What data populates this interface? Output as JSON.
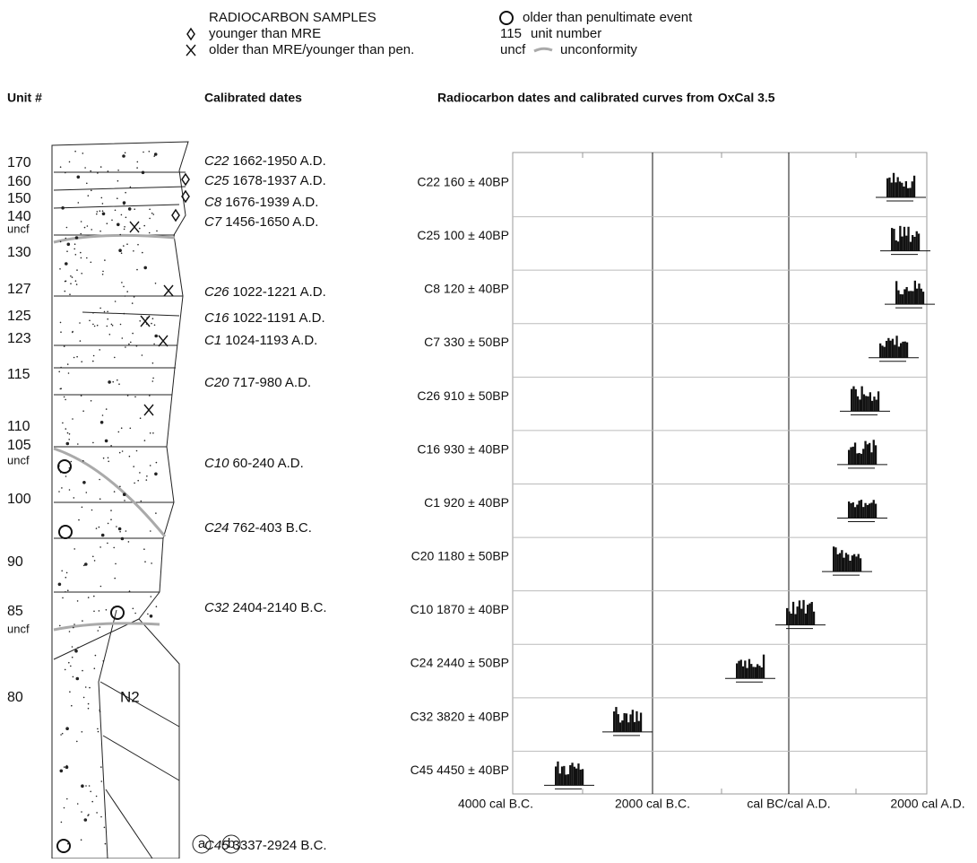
{
  "legend": {
    "title": "RADIOCARBON SAMPLES",
    "items": [
      {
        "text": "younger than MRE"
      },
      {
        "text": "older than MRE/younger than pen."
      },
      {
        "text": "older than penultimate event"
      },
      {
        "key": "115",
        "text": "unit number"
      },
      {
        "key": "uncf",
        "text": "unconformity"
      }
    ]
  },
  "headers": {
    "unit": "Unit #",
    "dates": "Calibrated dates",
    "oxcal": "Radiocarbon dates and calibrated curves from OxCal 3.5"
  },
  "units": [
    "170",
    "160",
    "150",
    "140",
    "uncf",
    "130",
    "127",
    "125",
    "123",
    "115",
    "110",
    "105",
    "uncf",
    "100",
    "90",
    "85",
    "uncf",
    "80"
  ],
  "column_label": "N2",
  "dates": [
    {
      "sample": "C22",
      "range": "1662-1950 A.D."
    },
    {
      "sample": "C25",
      "range": "1678-1937 A.D."
    },
    {
      "sample": "C8",
      "range": "1676-1939 A.D."
    },
    {
      "sample": "C7",
      "range": "1456-1650 A.D."
    },
    {
      "sample": "C26",
      "range": "1022-1221 A.D."
    },
    {
      "sample": "C16",
      "range": "1022-1191 A.D."
    },
    {
      "sample": "C1",
      "range": "1024-1193 A.D."
    },
    {
      "sample": "C20",
      "range": "717-980 A.D."
    },
    {
      "sample": "C10",
      "range": "60-240 A.D."
    },
    {
      "sample": "C24",
      "range": "762-403 B.C."
    },
    {
      "sample": "C32",
      "range": "2404-2140 B.C."
    },
    {
      "sample": "C45",
      "range": "3337-2924 B.C."
    }
  ],
  "oxcal_rows": [
    "C22 160 ± 40BP",
    "C25 100 ± 40BP",
    "C8 120 ± 40BP",
    "C7 330 ± 50BP",
    "C26 910 ± 50BP",
    "C16 930 ± 40BP",
    "C1 920 ± 40BP",
    "C20 1180 ± 50BP",
    "C10 1870 ± 40BP",
    "C24 2440 ± 50BP",
    "C32 3820 ± 40BP",
    "C45 4450 ± 40BP"
  ],
  "x_axis": [
    "4000 cal B.C.",
    "2000 cal B.C.",
    "cal BC/cal A.D.",
    "2000 cal A.D."
  ],
  "panels": [
    "a",
    "b"
  ]
}
